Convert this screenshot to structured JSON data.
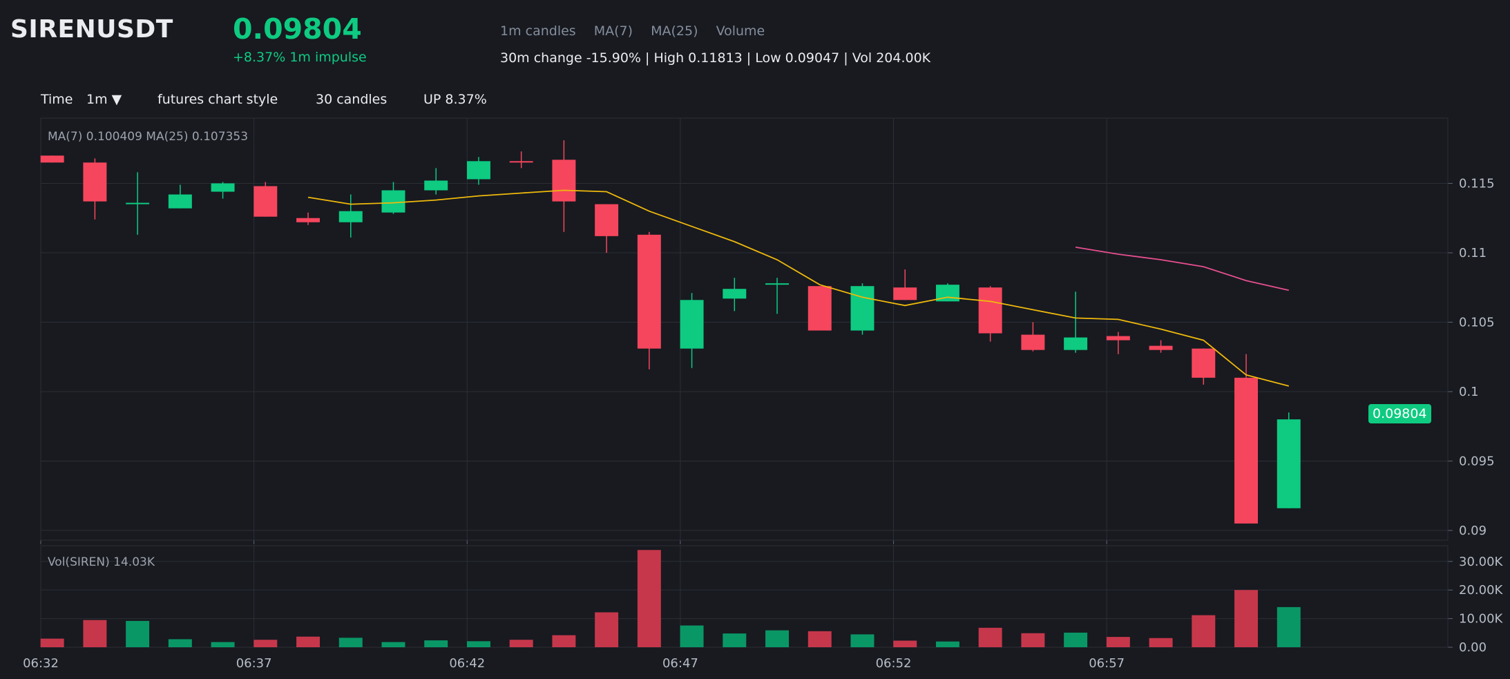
{
  "header": {
    "symbol": "SIRENUSDT",
    "price": "0.09804",
    "impulse": "+8.37% 1m impulse",
    "indicators": [
      "1m candles",
      "MA(7)",
      "MA(25)",
      "Volume"
    ],
    "stats": "30m change -15.90% | High 0.11813 | Low 0.09047 | Vol 204.00K"
  },
  "toolbar": {
    "time_label": "Time",
    "interval": "1m ▼",
    "style": "futures chart style",
    "candles": "30 candles",
    "up": "UP 8.37%"
  },
  "colors": {
    "up": "#0ecb81",
    "down": "#f6465d",
    "ma7": "#f0b90b",
    "ma25": "#e84f8f",
    "background": "#181a20",
    "grid": "#2b2f36"
  },
  "chart_data": {
    "type": "candlestick",
    "title": "SIRENUSDT",
    "interval": "1m",
    "price_legend": "MA(7) 0.100409    MA(25) 0.107353",
    "volume_legend": "Vol(SIREN) 14.03K",
    "last_price_tag": "0.09804",
    "ylim": [
      0.0893,
      0.1197
    ],
    "yticks": [
      0.09,
      0.095,
      0.1,
      0.105,
      0.11,
      0.115
    ],
    "ytick_labels": [
      "0.09",
      "0.095",
      "0.1",
      "0.105",
      "0.11",
      "0.115"
    ],
    "vol_ylim": [
      0,
      35500
    ],
    "vol_yticks": [
      0,
      10000,
      20000,
      30000
    ],
    "vol_ytick_labels": [
      "0.00",
      "10.00K",
      "20.00K",
      "30.00K"
    ],
    "x_range": [
      0,
      33
    ],
    "xticks": [
      0,
      5,
      10,
      15,
      20,
      25
    ],
    "xtick_labels": [
      "06:32",
      "06:37",
      "06:42",
      "06:47",
      "06:52",
      "06:57"
    ],
    "candles": [
      {
        "t": 0,
        "o": 0.117,
        "h": 0.117,
        "l": 0.1165,
        "c": 0.1165,
        "v": 3000
      },
      {
        "t": 1,
        "o": 0.1165,
        "h": 0.1168,
        "l": 0.1124,
        "c": 0.1137,
        "v": 9500
      },
      {
        "t": 2,
        "o": 0.1135,
        "h": 0.1158,
        "l": 0.1113,
        "c": 0.1136,
        "v": 9200
      },
      {
        "t": 3,
        "o": 0.1132,
        "h": 0.1149,
        "l": 0.1132,
        "c": 0.1142,
        "v": 2800
      },
      {
        "t": 4,
        "o": 0.1144,
        "h": 0.1151,
        "l": 0.1139,
        "c": 0.115,
        "v": 1800
      },
      {
        "t": 5,
        "o": 0.1148,
        "h": 0.1151,
        "l": 0.1126,
        "c": 0.1126,
        "v": 2600
      },
      {
        "t": 6,
        "o": 0.1125,
        "h": 0.1129,
        "l": 0.112,
        "c": 0.1122,
        "v": 3700
      },
      {
        "t": 7,
        "o": 0.1122,
        "h": 0.1142,
        "l": 0.1111,
        "c": 0.113,
        "v": 3300
      },
      {
        "t": 8,
        "o": 0.1129,
        "h": 0.1151,
        "l": 0.1128,
        "c": 0.1145,
        "v": 1800
      },
      {
        "t": 9,
        "o": 0.1145,
        "h": 0.1161,
        "l": 0.1142,
        "c": 0.1152,
        "v": 2400
      },
      {
        "t": 10,
        "o": 0.1153,
        "h": 0.1169,
        "l": 0.1149,
        "c": 0.1166,
        "v": 2100
      },
      {
        "t": 11,
        "o": 0.1166,
        "h": 0.1173,
        "l": 0.1161,
        "c": 0.1165,
        "v": 2600
      },
      {
        "t": 12,
        "o": 0.1167,
        "h": 0.1181,
        "l": 0.1115,
        "c": 0.1137,
        "v": 4200
      },
      {
        "t": 13,
        "o": 0.1135,
        "h": 0.1135,
        "l": 0.11,
        "c": 0.1112,
        "v": 12200
      },
      {
        "t": 14,
        "o": 0.1113,
        "h": 0.1115,
        "l": 0.1016,
        "c": 0.1031,
        "v": 34000
      },
      {
        "t": 15,
        "o": 0.1031,
        "h": 0.1071,
        "l": 0.1017,
        "c": 0.1066,
        "v": 7600
      },
      {
        "t": 16,
        "o": 0.1067,
        "h": 0.1082,
        "l": 0.1058,
        "c": 0.1074,
        "v": 4800
      },
      {
        "t": 17,
        "o": 0.1078,
        "h": 0.1082,
        "l": 0.1056,
        "c": 0.1078,
        "v": 5900
      },
      {
        "t": 18,
        "o": 0.1076,
        "h": 0.1076,
        "l": 0.1044,
        "c": 0.1044,
        "v": 5600
      },
      {
        "t": 19,
        "o": 0.1044,
        "h": 0.1078,
        "l": 0.1041,
        "c": 0.1076,
        "v": 4500
      },
      {
        "t": 20,
        "o": 0.1075,
        "h": 0.1088,
        "l": 0.1066,
        "c": 0.1066,
        "v": 2300
      },
      {
        "t": 21,
        "o": 0.1065,
        "h": 0.1078,
        "l": 0.1065,
        "c": 0.1077,
        "v": 2000
      },
      {
        "t": 22,
        "o": 0.1075,
        "h": 0.1076,
        "l": 0.1036,
        "c": 0.1042,
        "v": 6800
      },
      {
        "t": 23,
        "o": 0.1041,
        "h": 0.105,
        "l": 0.1029,
        "c": 0.103,
        "v": 4900
      },
      {
        "t": 24,
        "o": 0.103,
        "h": 0.1072,
        "l": 0.1028,
        "c": 0.1039,
        "v": 5100
      },
      {
        "t": 25,
        "o": 0.104,
        "h": 0.1043,
        "l": 0.1027,
        "c": 0.1037,
        "v": 3600
      },
      {
        "t": 26,
        "o": 0.1033,
        "h": 0.1037,
        "l": 0.1028,
        "c": 0.103,
        "v": 3200
      },
      {
        "t": 27,
        "o": 0.1031,
        "h": 0.1031,
        "l": 0.1005,
        "c": 0.101,
        "v": 11200
      },
      {
        "t": 28,
        "o": 0.101,
        "h": 0.1027,
        "l": 0.0905,
        "c": 0.0905,
        "v": 20000
      },
      {
        "t": 29,
        "o": 0.0916,
        "h": 0.0985,
        "l": 0.0916,
        "c": 0.098,
        "v": 14030
      }
    ],
    "series": [
      {
        "name": "MA(7)",
        "x": [
          6,
          7,
          8,
          9,
          10,
          11,
          12,
          13,
          14,
          15,
          16,
          17,
          18,
          19,
          20,
          21,
          22,
          23,
          24,
          25,
          26,
          27,
          28,
          29
        ],
        "values": [
          0.114,
          0.1135,
          0.1136,
          0.1138,
          0.1141,
          0.1143,
          0.1145,
          0.1144,
          0.113,
          0.1119,
          0.1108,
          0.1095,
          0.1077,
          0.1068,
          0.1062,
          0.1068,
          0.1065,
          0.1059,
          0.1053,
          0.1052,
          0.1045,
          0.1037,
          0.1012,
          0.1004
        ]
      },
      {
        "name": "MA(25)",
        "x": [
          24,
          25,
          26,
          27,
          28,
          29
        ],
        "values": [
          0.1104,
          0.1099,
          0.1095,
          0.109,
          0.108,
          0.1073
        ]
      }
    ]
  }
}
